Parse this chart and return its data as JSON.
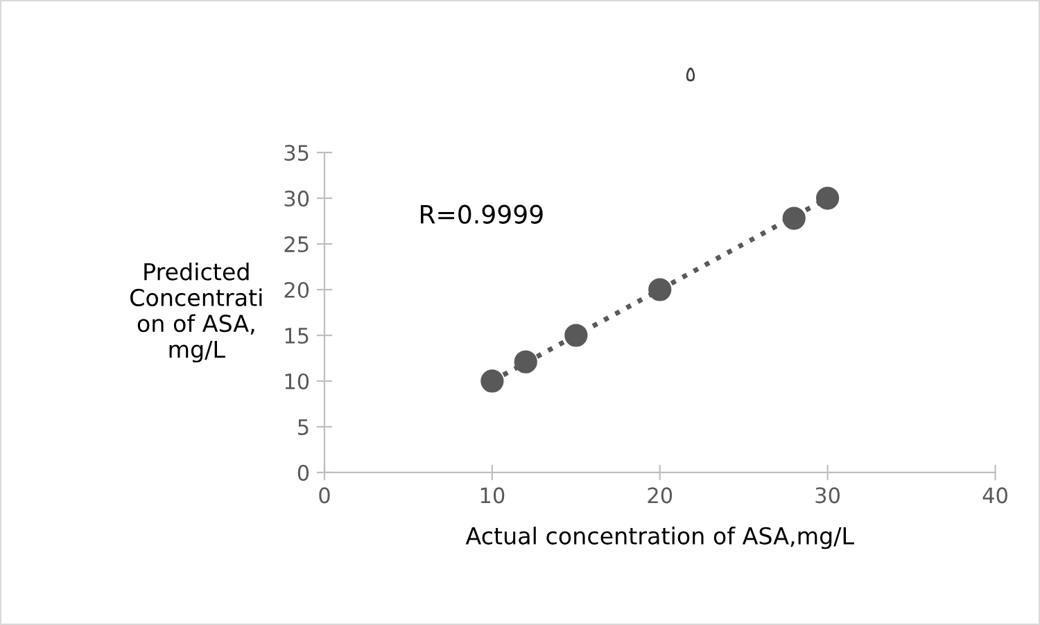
{
  "chart_data": {
    "type": "scatter",
    "title": "٥",
    "xlabel": "Actual concentration of ASA,mg/L",
    "ylabel": "Predicted\nConcentrati\non of ASA,\nmg/L",
    "annotations": [
      "R=0.9999"
    ],
    "series": [
      {
        "color": "#595959",
        "x": [
          10,
          12,
          15,
          20,
          28,
          30
        ],
        "values": [
          10,
          12.1,
          15,
          20,
          27.8,
          30
        ],
        "marker": "circle"
      },
      {
        "type": "line",
        "color": "#595959",
        "x": [
          10,
          30
        ],
        "values": [
          10,
          30
        ],
        "line_style": "dotted",
        "marker": "none"
      }
    ],
    "xlim": [
      0,
      40
    ],
    "xticks": [
      0,
      10,
      20,
      30,
      40
    ],
    "ylim": [
      0,
      35
    ],
    "yticks": [
      0,
      5,
      10,
      15,
      20,
      25,
      30,
      35
    ],
    "grid": false,
    "legend": false
  }
}
